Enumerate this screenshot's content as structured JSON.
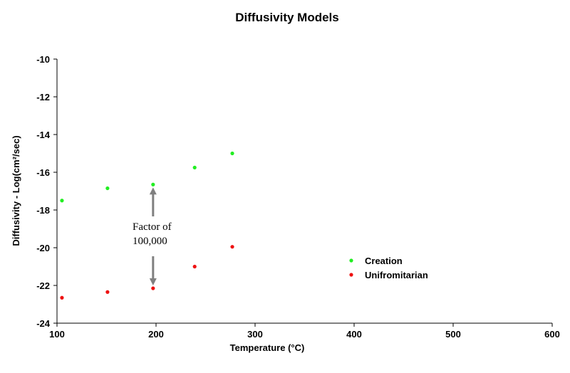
{
  "chart_data": {
    "type": "scatter",
    "title": "Diffusivity Models",
    "xlabel": "Temperature (°C)",
    "ylabel": "Diffusivity - Log(cm²/sec)",
    "xlim": [
      100,
      600
    ],
    "ylim": [
      -24,
      -10
    ],
    "xticks": [
      100,
      200,
      300,
      400,
      500,
      600
    ],
    "yticks": [
      -10,
      -12,
      -14,
      -16,
      -18,
      -20,
      -22,
      -24
    ],
    "grid": false,
    "legend_position": "center-right",
    "series": [
      {
        "name": "Creation",
        "color": "#22ee22",
        "x": [
          105,
          151,
          197,
          239,
          277
        ],
        "y": [
          -17.5,
          -16.85,
          -16.65,
          -15.75,
          -15.0
        ]
      },
      {
        "name": "Unifromitarian",
        "color": "#ee1111",
        "x": [
          105,
          151,
          197,
          239,
          277
        ],
        "y": [
          -22.65,
          -22.35,
          -22.15,
          -21.0,
          -19.95
        ]
      }
    ],
    "annotation": {
      "line1": "Factor of",
      "line2": "100,000",
      "arrow_x": 197,
      "arrow_from": -16.65,
      "arrow_to": -22.15,
      "arrow_color": "#808080"
    }
  }
}
